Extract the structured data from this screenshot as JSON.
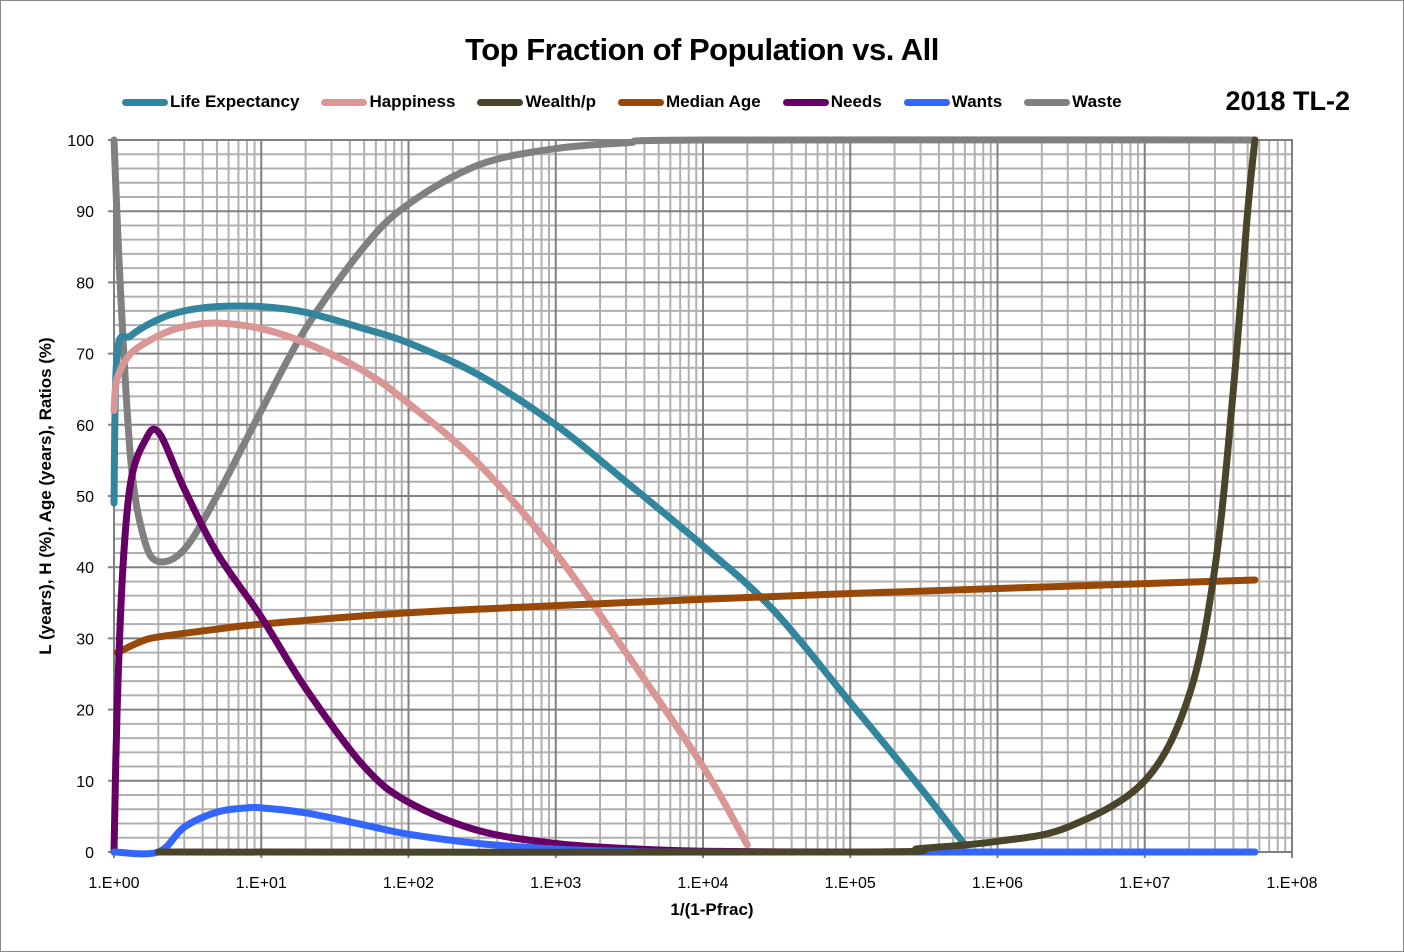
{
  "chart": {
    "title": "Top Fraction of Population vs. All",
    "tag": "2018 TL-2",
    "xlabel": "1/(1-Pfrac)",
    "ylabel": "L (years), H (%), Age (years), Ratios (%)"
  },
  "legend": [
    {
      "label": "Life Expectancy",
      "color": "#31859C"
    },
    {
      "label": "Happiness",
      "color": "#D99694"
    },
    {
      "label": "Wealth/p",
      "color": "#4A452A"
    },
    {
      "label": "Median Age",
      "color": "#984807"
    },
    {
      "label": "Needs",
      "color": "#660066"
    },
    {
      "label": "Wants",
      "color": "#3366FF"
    },
    {
      "label": "Waste",
      "color": "#808080"
    }
  ],
  "chart_data": {
    "type": "line",
    "title": "Top Fraction of Population vs. All",
    "subtitle": "2018 TL-2",
    "xlabel": "1/(1-Pfrac)",
    "ylabel": "L (years), H (%), Age (years), Ratios (%)",
    "xscale": "log",
    "xlim": [
      1,
      100000000
    ],
    "ylim": [
      0,
      100
    ],
    "xticks": [
      "1.E+00",
      "1.E+01",
      "1.E+02",
      "1.E+03",
      "1.E+04",
      "1.E+05",
      "1.E+06",
      "1.E+07",
      "1.E+08"
    ],
    "yticks": [
      0,
      10,
      20,
      30,
      40,
      50,
      60,
      70,
      80,
      90,
      100
    ],
    "grid": true,
    "legend_position": "top",
    "series": [
      {
        "name": "Life Expectancy",
        "color": "#31859C",
        "points": [
          [
            1,
            49
          ],
          [
            1.05,
            70
          ],
          [
            1.3,
            72.5
          ],
          [
            2,
            74.8
          ],
          [
            3,
            76
          ],
          [
            5,
            76.6
          ],
          [
            10,
            76.6
          ],
          [
            20,
            75.8
          ],
          [
            50,
            73.5
          ],
          [
            100,
            71.5
          ],
          [
            300,
            67
          ],
          [
            1000,
            60
          ],
          [
            3000,
            52
          ],
          [
            10000,
            43
          ],
          [
            30000,
            34
          ],
          [
            100000,
            21
          ],
          [
            300000,
            9
          ],
          [
            600000,
            1
          ]
        ]
      },
      {
        "name": "Happiness",
        "color": "#D99694",
        "points": [
          [
            1,
            62
          ],
          [
            1.05,
            66.5
          ],
          [
            1.3,
            70
          ],
          [
            2,
            72.5
          ],
          [
            3,
            73.8
          ],
          [
            5,
            74.3
          ],
          [
            10,
            73.5
          ],
          [
            20,
            71.5
          ],
          [
            50,
            67.5
          ],
          [
            100,
            63
          ],
          [
            300,
            54.5
          ],
          [
            1000,
            42
          ],
          [
            3000,
            28
          ],
          [
            10000,
            12
          ],
          [
            20000,
            1
          ]
        ]
      },
      {
        "name": "Wealth/p",
        "color": "#4A452A",
        "points": [
          [
            2,
            0
          ],
          [
            100000,
            0
          ],
          [
            300000,
            0.5
          ],
          [
            1000000,
            1.5
          ],
          [
            3000000,
            3.5
          ],
          [
            10000000,
            10
          ],
          [
            20000000,
            22
          ],
          [
            30000000,
            40
          ],
          [
            40000000,
            65
          ],
          [
            50000000,
            90
          ],
          [
            56000000,
            100
          ]
        ]
      },
      {
        "name": "Median Age",
        "color": "#984807",
        "points": [
          [
            1.05,
            28
          ],
          [
            1.5,
            29.5
          ],
          [
            2,
            30.2
          ],
          [
            5,
            31.3
          ],
          [
            10,
            32
          ],
          [
            100,
            33.6
          ],
          [
            1000,
            34.6
          ],
          [
            10000,
            35.5
          ],
          [
            100000,
            36.3
          ],
          [
            1000000,
            37
          ],
          [
            10000000,
            37.7
          ],
          [
            56000000,
            38.2
          ]
        ]
      },
      {
        "name": "Needs",
        "color": "#660066",
        "points": [
          [
            1,
            0
          ],
          [
            1.05,
            20
          ],
          [
            1.15,
            40
          ],
          [
            1.3,
            52
          ],
          [
            1.6,
            57.5
          ],
          [
            2,
            59
          ],
          [
            3,
            51
          ],
          [
            5,
            42
          ],
          [
            10,
            33
          ],
          [
            20,
            23
          ],
          [
            50,
            12
          ],
          [
            100,
            7
          ],
          [
            300,
            3
          ],
          [
            1000,
            1.2
          ],
          [
            3000,
            0.5
          ],
          [
            10000,
            0.1
          ],
          [
            100000,
            0
          ],
          [
            600000,
            0
          ]
        ]
      },
      {
        "name": "Wants",
        "color": "#3366FF",
        "points": [
          [
            1,
            0
          ],
          [
            2,
            0
          ],
          [
            3,
            3.5
          ],
          [
            5,
            5.6
          ],
          [
            8,
            6.2
          ],
          [
            10,
            6.2
          ],
          [
            20,
            5.5
          ],
          [
            50,
            3.8
          ],
          [
            100,
            2.5
          ],
          [
            300,
            1.2
          ],
          [
            1000,
            0.4
          ],
          [
            3000,
            0.1
          ],
          [
            10000,
            0
          ],
          [
            56000000,
            0
          ]
        ]
      },
      {
        "name": "Waste",
        "color": "#808080",
        "points": [
          [
            1,
            100
          ],
          [
            1.1,
            80
          ],
          [
            1.3,
            55
          ],
          [
            1.6,
            44
          ],
          [
            2,
            40.8
          ],
          [
            3,
            42.5
          ],
          [
            5,
            50
          ],
          [
            10,
            62
          ],
          [
            20,
            73.5
          ],
          [
            50,
            85
          ],
          [
            100,
            91
          ],
          [
            300,
            96.5
          ],
          [
            1000,
            98.8
          ],
          [
            3000,
            99.6
          ],
          [
            10000,
            100
          ],
          [
            56000000,
            100
          ]
        ]
      }
    ]
  }
}
